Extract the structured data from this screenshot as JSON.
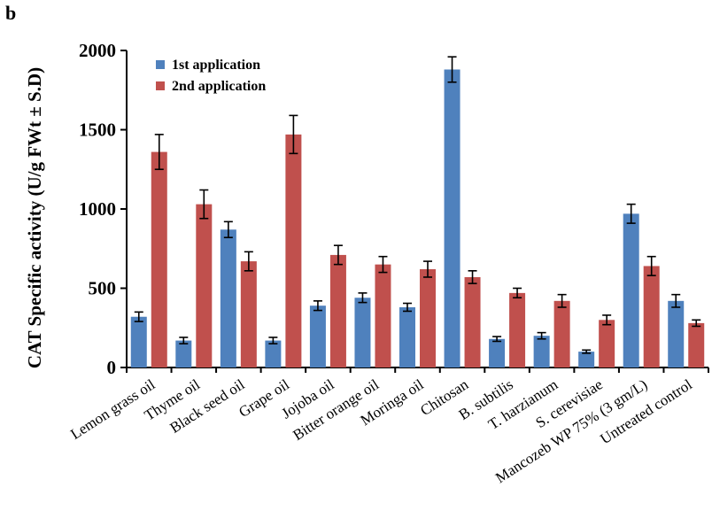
{
  "panel_label": "b",
  "chart_data": {
    "type": "bar",
    "ylabel": "CAT Specific activity (U/g FWt ± S.D)",
    "xlabel": "",
    "ylim": [
      0,
      2000
    ],
    "yticks": [
      0,
      500,
      1000,
      1500,
      2000
    ],
    "grid": false,
    "legend_position": "top-left",
    "categories": [
      "Lemon grass oil",
      "Thyme oil",
      "Black seed oil",
      "Grape oil",
      "Jojoba oil",
      "Bitter orange oil",
      "Moringa oil",
      "Chitosan",
      "B. subtilis",
      "T. harzianum",
      "S. cerevisiae",
      "Mancozeb WP 75% (3 gm/L)",
      "Untreated control"
    ],
    "series": [
      {
        "name": "1st application",
        "color": "#4F81BD",
        "values": [
          320,
          170,
          870,
          170,
          390,
          440,
          380,
          1880,
          180,
          200,
          100,
          970,
          420
        ],
        "errors": [
          30,
          20,
          50,
          20,
          30,
          30,
          25,
          80,
          15,
          20,
          10,
          60,
          40
        ]
      },
      {
        "name": "2nd application",
        "color": "#C0504D",
        "values": [
          1360,
          1030,
          670,
          1470,
          710,
          650,
          620,
          570,
          470,
          420,
          300,
          640,
          280
        ],
        "errors": [
          110,
          90,
          60,
          120,
          60,
          50,
          50,
          40,
          30,
          40,
          30,
          60,
          20
        ]
      }
    ]
  }
}
